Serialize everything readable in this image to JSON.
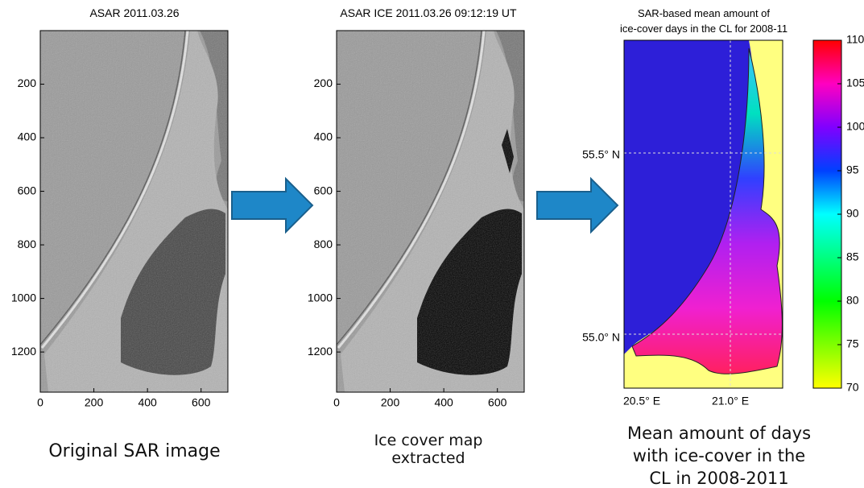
{
  "panels": [
    {
      "title": "ASAR 2011.03.26",
      "xlim": [
        0,
        700
      ],
      "ylim": [
        0,
        1350
      ],
      "xticks": [
        0,
        200,
        400,
        600
      ],
      "yticks": [
        200,
        400,
        600,
        800,
        1000,
        1200
      ],
      "caption": [
        "Original SAR image"
      ]
    },
    {
      "title": "ASAR ICE 2011.03.26  09:12:19 UT",
      "xlim": [
        0,
        700
      ],
      "ylim": [
        0,
        1350
      ],
      "xticks": [
        0,
        200,
        400,
        600
      ],
      "yticks": [
        200,
        400,
        600,
        800,
        1000,
        1200
      ],
      "caption": [
        "Ice cover map",
        "extracted"
      ]
    }
  ],
  "map": {
    "title": [
      "SAR-based mean amount of",
      "ice-cover days in the CL for 2008-11"
    ],
    "lat_labels": [
      "55.5° N",
      "55.0° N"
    ],
    "lon_labels": [
      "20.5° E",
      "21.0° E"
    ],
    "colorbar": {
      "lim": [
        70,
        110
      ],
      "ticks": [
        70,
        75,
        80,
        85,
        90,
        95,
        100,
        105,
        110
      ]
    },
    "caption": [
      "Mean amount of days",
      "with ice-cover in the",
      "CL in 2008-2011"
    ]
  }
}
